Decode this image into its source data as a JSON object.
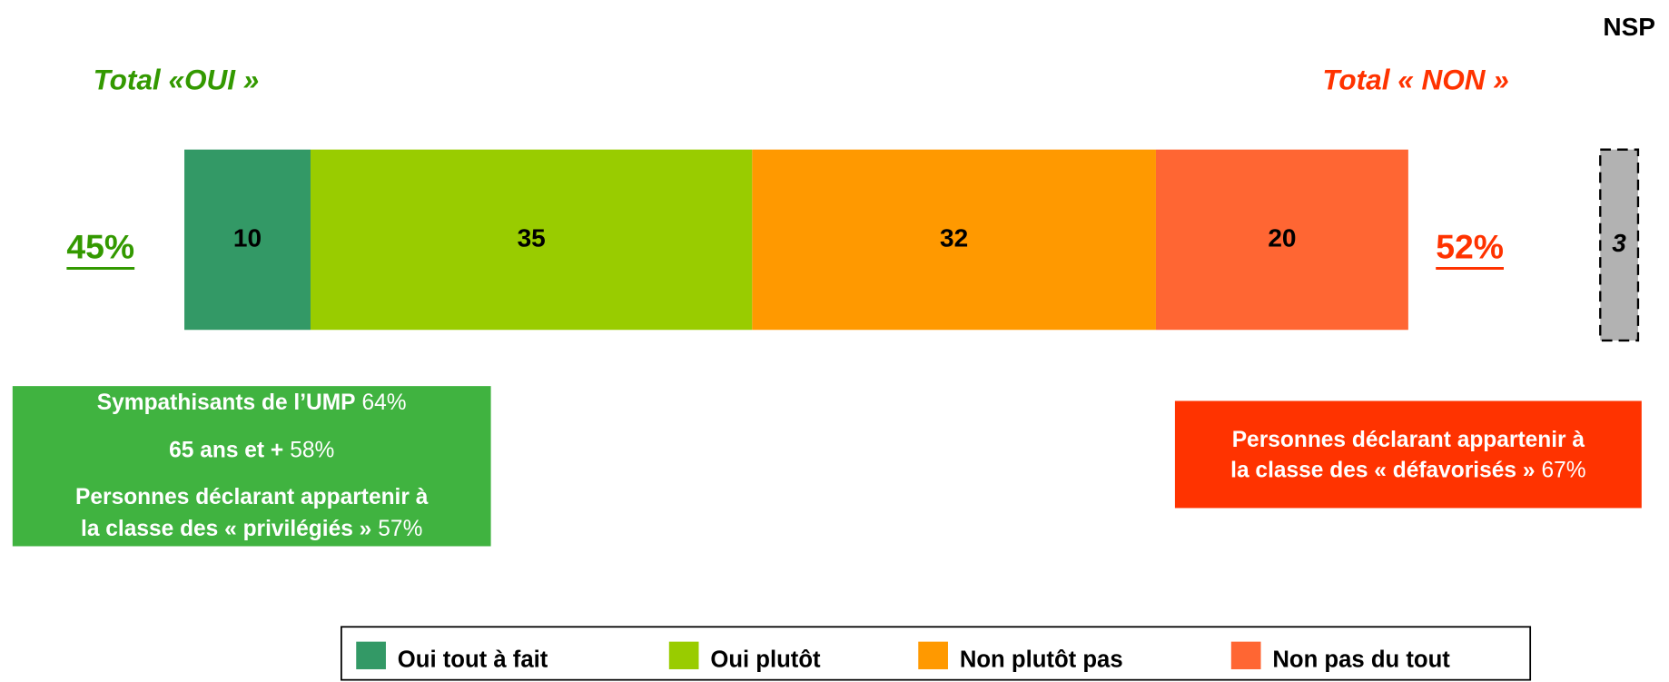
{
  "chart_data": {
    "type": "bar",
    "orientation": "horizontal",
    "stacked": true,
    "series": [
      {
        "name": "Oui tout à fait",
        "color": "#339966",
        "values": [
          10
        ]
      },
      {
        "name": "Oui plutôt",
        "color": "#99cc00",
        "values": [
          35
        ]
      },
      {
        "name": "Non plutôt pas",
        "color": "#ff9900",
        "values": [
          32
        ]
      },
      {
        "name": "Non pas du tout",
        "color": "#ff6633",
        "values": [
          20
        ]
      }
    ],
    "nsp": {
      "name": "NSP",
      "value": 3,
      "color": "#b2b2b2"
    },
    "totals": [
      {
        "title": "Total «OUI »",
        "value": 45,
        "label": "45%",
        "color": "#339900"
      },
      {
        "title": "Total « NON »",
        "value": 52,
        "label": "52%",
        "color": "#ff3300"
      }
    ],
    "annotations": [
      {
        "color": "#40b340",
        "lines": [
          {
            "bold": "Sympathisants de l’UMP",
            "text": "64%"
          },
          {
            "bold": "65 ans et +",
            "text": "58%"
          },
          {
            "bold": "Personnes déclarant appartenir à"
          },
          {
            "bold": "la classe des « privilégiés »",
            "text": "57%"
          }
        ]
      },
      {
        "color": "#ff3300",
        "lines": [
          {
            "bold": "Personnes déclarant appartenir à"
          },
          {
            "bold": "la classe des « défavorisés »",
            "text": "67%"
          }
        ]
      }
    ]
  }
}
